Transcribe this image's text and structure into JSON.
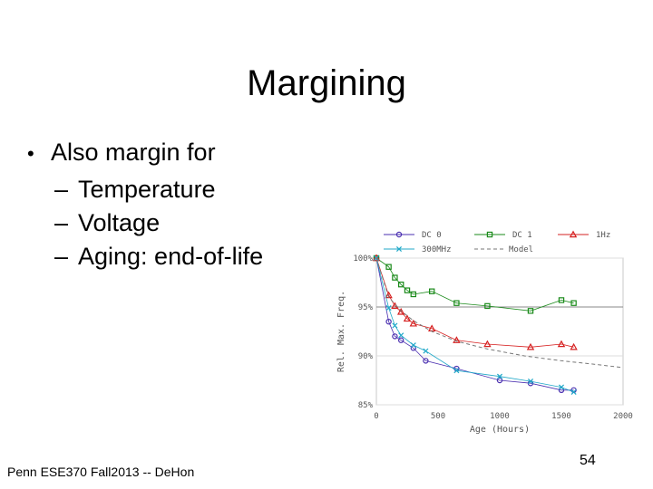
{
  "slide": {
    "title": "Margining",
    "bullet": "Also margin for",
    "sub_items": [
      "Temperature",
      "Voltage",
      "Aging: end-of-life"
    ],
    "footer": "Penn ESE370 Fall2013 -- DeHon",
    "page_number": "54"
  },
  "chart_data": {
    "type": "line",
    "xlabel": "Age (Hours)",
    "ylabel": "Rel. Max. Freq.",
    "xlim": [
      0,
      2000
    ],
    "ylim": [
      85,
      100
    ],
    "xticks": [
      "0",
      "500",
      "1000",
      "1500",
      "2000"
    ],
    "yticks": [
      "85%",
      "90%",
      "95%",
      "100%"
    ],
    "legend_position": "top",
    "series": [
      {
        "name": "DC 0",
        "color": "#4a2fb0",
        "marker": "circle",
        "x": [
          0,
          100,
          150,
          200,
          300,
          400,
          650,
          1000,
          1250,
          1500,
          1600
        ],
        "y": [
          100,
          93.5,
          92,
          91.6,
          90.8,
          89.5,
          88.7,
          87.5,
          87.2,
          86.5,
          86.5
        ]
      },
      {
        "name": "DC 1",
        "color": "#1a8a1a",
        "marker": "square",
        "x": [
          0,
          100,
          150,
          200,
          250,
          300,
          450,
          650,
          900,
          1250,
          1500,
          1600
        ],
        "y": [
          100,
          99.1,
          98,
          97.3,
          96.7,
          96.3,
          96.6,
          95.4,
          95.1,
          94.6,
          95.7,
          95.4
        ]
      },
      {
        "name": "1Hz",
        "color": "#d62020",
        "marker": "triangle",
        "x": [
          0,
          100,
          150,
          200,
          250,
          300,
          450,
          650,
          900,
          1250,
          1500,
          1600
        ],
        "y": [
          100,
          96.2,
          95.1,
          94.5,
          93.8,
          93.3,
          92.8,
          91.6,
          91.2,
          90.9,
          91.2,
          90.9
        ]
      },
      {
        "name": "300MHz",
        "color": "#20a8c8",
        "marker": "x",
        "x": [
          0,
          100,
          150,
          200,
          300,
          400,
          650,
          1000,
          1250,
          1500,
          1600
        ],
        "y": [
          100,
          94.9,
          93.1,
          92.1,
          91.1,
          90.5,
          88.5,
          87.9,
          87.4,
          86.8,
          86.3
        ]
      },
      {
        "name": "Model",
        "color": "#777777",
        "marker": "none",
        "dashed": true,
        "x": [
          0,
          100,
          200,
          300,
          450,
          650,
          900,
          1200,
          1500,
          1800,
          2000
        ],
        "y": [
          100,
          96.0,
          94.6,
          93.6,
          92.5,
          91.5,
          90.7,
          90.0,
          89.5,
          89.1,
          88.8
        ]
      }
    ]
  }
}
